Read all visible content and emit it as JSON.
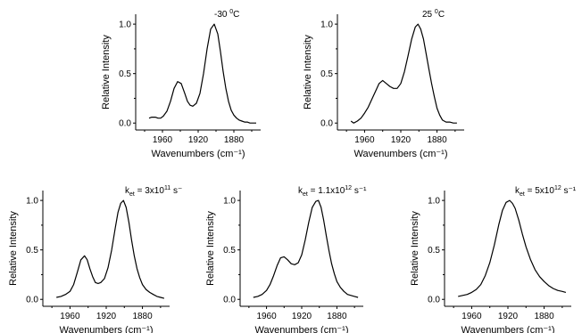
{
  "chart_data": [
    {
      "type": "line",
      "annotation": "-30 °C",
      "xlabel": "Wavenumbers (cm⁻¹)",
      "ylabel": "Relative Intensity",
      "xlim": [
        1990,
        1850
      ],
      "ylim": [
        -0.07,
        1.1
      ],
      "xticks": [
        1960,
        1920,
        1880
      ],
      "yticks": [
        0.0,
        0.5,
        1.0
      ],
      "series": [
        {
          "x": [
            1975,
            1972,
            1968,
            1965,
            1962,
            1959,
            1955,
            1951,
            1947,
            1943,
            1939,
            1935,
            1932,
            1929,
            1926,
            1922,
            1918,
            1914,
            1910,
            1906,
            1902,
            1898,
            1895,
            1892,
            1889,
            1886,
            1883,
            1880,
            1877,
            1874,
            1871,
            1868,
            1865,
            1862,
            1858,
            1855
          ],
          "y": [
            0.05,
            0.06,
            0.06,
            0.05,
            0.05,
            0.07,
            0.12,
            0.22,
            0.35,
            0.42,
            0.4,
            0.3,
            0.22,
            0.18,
            0.17,
            0.2,
            0.3,
            0.5,
            0.75,
            0.95,
            1.0,
            0.9,
            0.72,
            0.52,
            0.35,
            0.22,
            0.13,
            0.08,
            0.05,
            0.03,
            0.02,
            0.01,
            0.01,
            0.0,
            0.0,
            0.0
          ]
        }
      ]
    },
    {
      "type": "line",
      "annotation": "25 °C",
      "xlabel": "Wavenumbers (cm⁻¹)",
      "ylabel": "Relative Intensity",
      "xlim": [
        1990,
        1850
      ],
      "ylim": [
        -0.07,
        1.1
      ],
      "xticks": [
        1960,
        1920,
        1880
      ],
      "yticks": [
        0.0,
        0.5,
        1.0
      ],
      "series": [
        {
          "x": [
            1975,
            1972,
            1968,
            1964,
            1960,
            1956,
            1952,
            1948,
            1944,
            1940,
            1936,
            1932,
            1928,
            1924,
            1920,
            1916,
            1912,
            1908,
            1904,
            1901,
            1898,
            1895,
            1892,
            1889,
            1886,
            1883,
            1880,
            1877,
            1874,
            1870,
            1866,
            1862,
            1858
          ],
          "y": [
            0.02,
            0.0,
            0.02,
            0.05,
            0.1,
            0.16,
            0.24,
            0.32,
            0.4,
            0.43,
            0.4,
            0.37,
            0.35,
            0.35,
            0.4,
            0.52,
            0.68,
            0.85,
            0.97,
            1.0,
            0.95,
            0.85,
            0.7,
            0.55,
            0.4,
            0.27,
            0.15,
            0.08,
            0.03,
            0.01,
            0.01,
            0.0,
            0.0
          ]
        }
      ]
    },
    {
      "type": "line",
      "annotation": "k_et = 3x10^11 s⁻",
      "xlabel": "Wavenumbers (cm⁻¹)",
      "ylabel": "Relative Intensity",
      "xlim": [
        1990,
        1850
      ],
      "ylim": [
        -0.07,
        1.1
      ],
      "xticks": [
        1960,
        1920,
        1880
      ],
      "yticks": [
        0.0,
        0.5,
        1.0
      ],
      "series": [
        {
          "x": [
            1975,
            1970,
            1965,
            1960,
            1956,
            1952,
            1948,
            1944,
            1941,
            1938,
            1935,
            1932,
            1929,
            1926,
            1922,
            1918,
            1914,
            1910,
            1907,
            1904,
            1901,
            1898,
            1895,
            1892,
            1889,
            1886,
            1883,
            1880,
            1876,
            1872,
            1868,
            1864,
            1860,
            1856
          ],
          "y": [
            0.02,
            0.03,
            0.05,
            0.08,
            0.15,
            0.27,
            0.4,
            0.44,
            0.4,
            0.31,
            0.23,
            0.17,
            0.16,
            0.17,
            0.21,
            0.32,
            0.5,
            0.72,
            0.88,
            0.97,
            1.0,
            0.93,
            0.78,
            0.6,
            0.44,
            0.31,
            0.22,
            0.15,
            0.1,
            0.07,
            0.05,
            0.03,
            0.02,
            0.01
          ]
        }
      ]
    },
    {
      "type": "line",
      "annotation": "k_et = 1.1x10^12 s⁻¹",
      "xlabel": "Wavenumbers (cm⁻¹)",
      "ylabel": "Relative Intensity",
      "xlim": [
        1990,
        1850
      ],
      "ylim": [
        -0.07,
        1.1
      ],
      "xticks": [
        1960,
        1920,
        1880
      ],
      "yticks": [
        0.0,
        0.5,
        1.0
      ],
      "series": [
        {
          "x": [
            1975,
            1970,
            1965,
            1960,
            1956,
            1952,
            1948,
            1944,
            1940,
            1936,
            1932,
            1928,
            1924,
            1920,
            1916,
            1912,
            1908,
            1904,
            1901,
            1898,
            1895,
            1892,
            1889,
            1886,
            1883,
            1880,
            1876,
            1872,
            1868,
            1864,
            1860,
            1856
          ],
          "y": [
            0.02,
            0.03,
            0.05,
            0.09,
            0.15,
            0.24,
            0.34,
            0.42,
            0.43,
            0.4,
            0.36,
            0.35,
            0.37,
            0.45,
            0.6,
            0.78,
            0.93,
            0.99,
            1.0,
            0.93,
            0.8,
            0.64,
            0.49,
            0.36,
            0.26,
            0.18,
            0.12,
            0.08,
            0.05,
            0.04,
            0.03,
            0.02
          ]
        }
      ]
    },
    {
      "type": "line",
      "annotation": "k_et = 5x10^12 s⁻¹",
      "xlabel": "Wavenumbers (cm⁻¹)",
      "ylabel": "Relative Intensity",
      "xlim": [
        1990,
        1850
      ],
      "ylim": [
        -0.07,
        1.1
      ],
      "xticks": [
        1960,
        1920,
        1880
      ],
      "yticks": [
        0.0,
        0.5,
        1.0
      ],
      "series": [
        {
          "x": [
            1975,
            1970,
            1965,
            1960,
            1955,
            1950,
            1945,
            1940,
            1935,
            1930,
            1926,
            1922,
            1918,
            1915,
            1912,
            1908,
            1904,
            1900,
            1895,
            1890,
            1885,
            1880,
            1875,
            1870,
            1865,
            1860,
            1856
          ],
          "y": [
            0.03,
            0.04,
            0.05,
            0.07,
            0.1,
            0.15,
            0.24,
            0.37,
            0.55,
            0.76,
            0.9,
            0.98,
            1.0,
            0.97,
            0.92,
            0.8,
            0.66,
            0.53,
            0.4,
            0.3,
            0.23,
            0.18,
            0.14,
            0.11,
            0.09,
            0.08,
            0.07
          ]
        }
      ]
    }
  ]
}
